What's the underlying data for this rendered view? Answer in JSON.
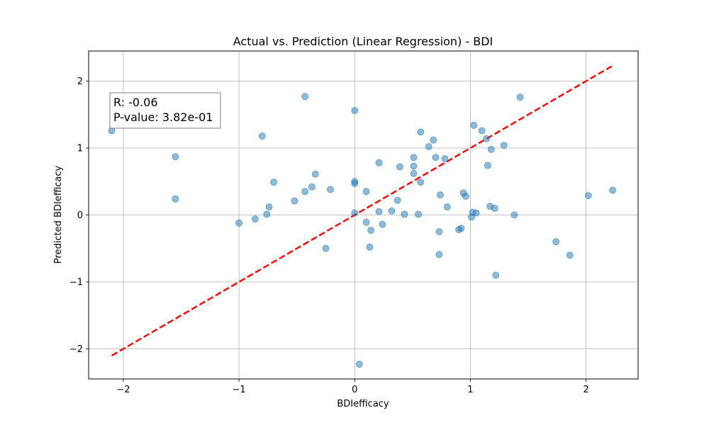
{
  "chart_data": {
    "type": "scatter",
    "title": "Actual vs. Prediction (Linear Regression) - BDI",
    "xlabel": "BDIefficacy",
    "ylabel": "Predicted BDIefficacy",
    "xlim": [
      -2.3,
      2.45
    ],
    "ylim": [
      -2.45,
      2.45
    ],
    "xticks": [
      -2,
      -1,
      0,
      1,
      2
    ],
    "yticks": [
      -2,
      -1,
      0,
      1,
      2
    ],
    "tick_labels": {
      "x": [
        "−2",
        "−1",
        "0",
        "1",
        "2"
      ],
      "y": [
        "−2",
        "−1",
        "0",
        "1",
        "2"
      ]
    },
    "grid": true,
    "point_color": "#1f77b4",
    "line_color": "#ff0000",
    "annotation": {
      "r_text": "R: -0.06",
      "p_text": "P-value: 3.82e-01",
      "placement": "top-left"
    },
    "reference_line": {
      "x": [
        -2.1,
        2.23
      ],
      "y": [
        -2.1,
        2.23
      ],
      "style": "dashed"
    },
    "points": [
      {
        "x": -2.1,
        "y": 1.26
      },
      {
        "x": -1.55,
        "y": 0.87
      },
      {
        "x": -1.55,
        "y": 0.24
      },
      {
        "x": -1.0,
        "y": -0.12
      },
      {
        "x": -0.86,
        "y": -0.06
      },
      {
        "x": -0.8,
        "y": 1.18
      },
      {
        "x": -0.76,
        "y": 0.01
      },
      {
        "x": -0.74,
        "y": 0.12
      },
      {
        "x": -0.7,
        "y": 0.49
      },
      {
        "x": -0.52,
        "y": 0.21
      },
      {
        "x": -0.43,
        "y": 1.77
      },
      {
        "x": -0.43,
        "y": 0.35
      },
      {
        "x": -0.37,
        "y": 0.42
      },
      {
        "x": -0.34,
        "y": 0.61
      },
      {
        "x": -0.25,
        "y": -0.5
      },
      {
        "x": -0.21,
        "y": 0.38
      },
      {
        "x": 0.0,
        "y": 1.56
      },
      {
        "x": 0.0,
        "y": 0.5
      },
      {
        "x": 0.0,
        "y": 0.47
      },
      {
        "x": 0.0,
        "y": 0.03
      },
      {
        "x": 0.04,
        "y": -2.23
      },
      {
        "x": 0.1,
        "y": 0.35
      },
      {
        "x": 0.1,
        "y": -0.11
      },
      {
        "x": 0.13,
        "y": -0.48
      },
      {
        "x": 0.14,
        "y": -0.23
      },
      {
        "x": 0.21,
        "y": 0.78
      },
      {
        "x": 0.21,
        "y": 0.05
      },
      {
        "x": 0.24,
        "y": -0.14
      },
      {
        "x": 0.32,
        "y": 0.06
      },
      {
        "x": 0.37,
        "y": 0.22
      },
      {
        "x": 0.39,
        "y": 0.72
      },
      {
        "x": 0.43,
        "y": 0.01
      },
      {
        "x": 0.51,
        "y": 0.86
      },
      {
        "x": 0.51,
        "y": 0.73
      },
      {
        "x": 0.51,
        "y": 0.62
      },
      {
        "x": 0.55,
        "y": 0.01
      },
      {
        "x": 0.57,
        "y": 1.24
      },
      {
        "x": 0.57,
        "y": 0.49
      },
      {
        "x": 0.64,
        "y": 1.02
      },
      {
        "x": 0.68,
        "y": 1.12
      },
      {
        "x": 0.7,
        "y": 0.86
      },
      {
        "x": 0.73,
        "y": -0.25
      },
      {
        "x": 0.73,
        "y": -0.59
      },
      {
        "x": 0.74,
        "y": 0.3
      },
      {
        "x": 0.78,
        "y": 0.84
      },
      {
        "x": 0.8,
        "y": 0.12
      },
      {
        "x": 0.9,
        "y": -0.22
      },
      {
        "x": 0.92,
        "y": -0.2
      },
      {
        "x": 0.94,
        "y": 0.33
      },
      {
        "x": 0.96,
        "y": 0.28
      },
      {
        "x": 1.01,
        "y": -0.03
      },
      {
        "x": 1.02,
        "y": 0.04
      },
      {
        "x": 1.03,
        "y": 1.34
      },
      {
        "x": 1.05,
        "y": 0.03
      },
      {
        "x": 1.1,
        "y": 1.26
      },
      {
        "x": 1.14,
        "y": 1.14
      },
      {
        "x": 1.15,
        "y": 0.74
      },
      {
        "x": 1.17,
        "y": 0.13
      },
      {
        "x": 1.18,
        "y": 0.98
      },
      {
        "x": 1.21,
        "y": 0.1
      },
      {
        "x": 1.22,
        "y": -0.9
      },
      {
        "x": 1.29,
        "y": 1.04
      },
      {
        "x": 1.38,
        "y": 0.0
      },
      {
        "x": 1.43,
        "y": 1.76
      },
      {
        "x": 1.74,
        "y": -0.4
      },
      {
        "x": 1.86,
        "y": -0.6
      },
      {
        "x": 2.02,
        "y": 0.29
      },
      {
        "x": 2.23,
        "y": 0.37
      }
    ]
  }
}
